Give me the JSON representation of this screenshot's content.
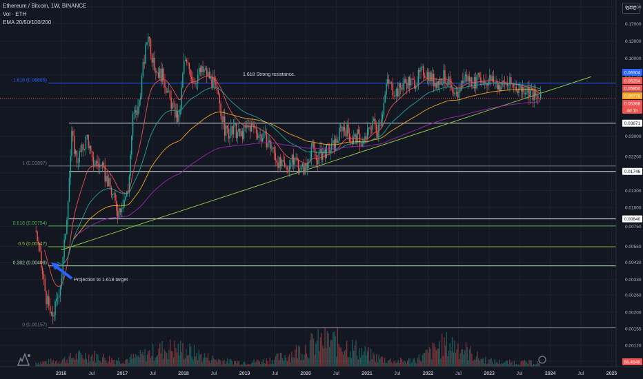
{
  "header": {
    "symbol_line": "Ethereum / Bitcoin, 1W, BINANCE",
    "volume_line": "Vol · ETH",
    "ema_line": "EMA 20/50/100/200",
    "currency": "BTC"
  },
  "colors": {
    "background": "#131722",
    "grid": "#1e222d",
    "text": "#b2b5be",
    "up": "#26a69a",
    "down": "#ef5350",
    "fib_1618": "#2962ff",
    "fib_618": "#4caf50",
    "fib_other": "#787b86",
    "trendline": "#8bc34a",
    "ema20": "#ef5350",
    "ema50": "#26a69a",
    "ema100": "#f5a623",
    "ema200": "#9c27b0"
  },
  "chart_data": {
    "type": "candlestick",
    "scale": "log",
    "x_ticks": [
      "2016",
      "Jul",
      "2017",
      "Jul",
      "2018",
      "Jul",
      "2019",
      "Jul",
      "2020",
      "Jul",
      "2021",
      "Jul",
      "2022",
      "Jul",
      "2023",
      "Jul",
      "2024",
      "Jul",
      "2025"
    ],
    "y_ticks": [
      "0.22000",
      "0.17000",
      "0.13000",
      "0.10000",
      "0.07700",
      "0.04700",
      "0.03000",
      "0.02200",
      "0.01700",
      "0.01300",
      "0.01000",
      "0.00750",
      "0.00550",
      "0.00430",
      "0.00330",
      "0.00260",
      "0.00200",
      "0.00155",
      "0.00120",
      "0.00094"
    ],
    "ylim": [
      0.00094,
      0.22
    ],
    "price_path": [
      {
        "date": "2015-08",
        "price": 0.007
      },
      {
        "date": "2015-09",
        "price": 0.004
      },
      {
        "date": "2015-10",
        "price": 0.0025
      },
      {
        "date": "2015-11",
        "price": 0.0018
      },
      {
        "date": "2015-12",
        "price": 0.0023
      },
      {
        "date": "2016-01",
        "price": 0.0035
      },
      {
        "date": "2016-02",
        "price": 0.009
      },
      {
        "date": "2016-03",
        "price": 0.03
      },
      {
        "date": "2016-04",
        "price": 0.021
      },
      {
        "date": "2016-05",
        "price": 0.024
      },
      {
        "date": "2016-06",
        "price": 0.03
      },
      {
        "date": "2016-07",
        "price": 0.02
      },
      {
        "date": "2016-08",
        "price": 0.02
      },
      {
        "date": "2016-09",
        "price": 0.018
      },
      {
        "date": "2016-10",
        "price": 0.015
      },
      {
        "date": "2016-11",
        "price": 0.012
      },
      {
        "date": "2016-12",
        "price": 0.0095
      },
      {
        "date": "2017-01",
        "price": 0.011
      },
      {
        "date": "2017-02",
        "price": 0.013
      },
      {
        "date": "2017-03",
        "price": 0.04
      },
      {
        "date": "2017-04",
        "price": 0.045
      },
      {
        "date": "2017-05",
        "price": 0.085
      },
      {
        "date": "2017-06",
        "price": 0.15
      },
      {
        "date": "2017-07",
        "price": 0.09
      },
      {
        "date": "2017-08",
        "price": 0.08
      },
      {
        "date": "2017-09",
        "price": 0.075
      },
      {
        "date": "2017-10",
        "price": 0.055
      },
      {
        "date": "2017-11",
        "price": 0.045
      },
      {
        "date": "2017-12",
        "price": 0.038
      },
      {
        "date": "2018-01",
        "price": 0.095
      },
      {
        "date": "2018-02",
        "price": 0.085
      },
      {
        "date": "2018-03",
        "price": 0.07
      },
      {
        "date": "2018-04",
        "price": 0.08
      },
      {
        "date": "2018-05",
        "price": 0.082
      },
      {
        "date": "2018-06",
        "price": 0.075
      },
      {
        "date": "2018-07",
        "price": 0.065
      },
      {
        "date": "2018-08",
        "price": 0.05
      },
      {
        "date": "2018-09",
        "price": 0.033
      },
      {
        "date": "2018-10",
        "price": 0.031
      },
      {
        "date": "2018-11",
        "price": 0.033
      },
      {
        "date": "2018-12",
        "price": 0.03
      },
      {
        "date": "2019-01",
        "price": 0.033
      },
      {
        "date": "2019-02",
        "price": 0.035
      },
      {
        "date": "2019-03",
        "price": 0.034
      },
      {
        "date": "2019-04",
        "price": 0.03
      },
      {
        "date": "2019-05",
        "price": 0.029
      },
      {
        "date": "2019-06",
        "price": 0.026
      },
      {
        "date": "2019-07",
        "price": 0.022
      },
      {
        "date": "2019-08",
        "price": 0.019
      },
      {
        "date": "2019-09",
        "price": 0.018
      },
      {
        "date": "2019-10",
        "price": 0.02
      },
      {
        "date": "2019-11",
        "price": 0.021
      },
      {
        "date": "2019-12",
        "price": 0.018
      },
      {
        "date": "2020-01",
        "price": 0.0185
      },
      {
        "date": "2020-02",
        "price": 0.026
      },
      {
        "date": "2020-03",
        "price": 0.021
      },
      {
        "date": "2020-04",
        "price": 0.023
      },
      {
        "date": "2020-05",
        "price": 0.024
      },
      {
        "date": "2020-06",
        "price": 0.025
      },
      {
        "date": "2020-07",
        "price": 0.028
      },
      {
        "date": "2020-08",
        "price": 0.035
      },
      {
        "date": "2020-09",
        "price": 0.033
      },
      {
        "date": "2020-10",
        "price": 0.028
      },
      {
        "date": "2020-11",
        "price": 0.03
      },
      {
        "date": "2020-12",
        "price": 0.026
      },
      {
        "date": "2021-01",
        "price": 0.031
      },
      {
        "date": "2021-02",
        "price": 0.038
      },
      {
        "date": "2021-03",
        "price": 0.033
      },
      {
        "date": "2021-04",
        "price": 0.045
      },
      {
        "date": "2021-05",
        "price": 0.07
      },
      {
        "date": "2021-06",
        "price": 0.062
      },
      {
        "date": "2021-07",
        "price": 0.06
      },
      {
        "date": "2021-08",
        "price": 0.068
      },
      {
        "date": "2021-09",
        "price": 0.07
      },
      {
        "date": "2021-10",
        "price": 0.068
      },
      {
        "date": "2021-11",
        "price": 0.075
      },
      {
        "date": "2021-12",
        "price": 0.082
      },
      {
        "date": "2022-01",
        "price": 0.078
      },
      {
        "date": "2022-02",
        "price": 0.07
      },
      {
        "date": "2022-03",
        "price": 0.07
      },
      {
        "date": "2022-04",
        "price": 0.075
      },
      {
        "date": "2022-05",
        "price": 0.068
      },
      {
        "date": "2022-06",
        "price": 0.052
      },
      {
        "date": "2022-07",
        "price": 0.06
      },
      {
        "date": "2022-08",
        "price": 0.076
      },
      {
        "date": "2022-09",
        "price": 0.072
      },
      {
        "date": "2022-10",
        "price": 0.069
      },
      {
        "date": "2022-11",
        "price": 0.072
      },
      {
        "date": "2022-12",
        "price": 0.071
      },
      {
        "date": "2023-01",
        "price": 0.072
      },
      {
        "date": "2023-02",
        "price": 0.069
      },
      {
        "date": "2023-03",
        "price": 0.065
      },
      {
        "date": "2023-04",
        "price": 0.068
      },
      {
        "date": "2023-05",
        "price": 0.067
      },
      {
        "date": "2023-06",
        "price": 0.064
      },
      {
        "date": "2023-07",
        "price": 0.063
      },
      {
        "date": "2023-08",
        "price": 0.063
      },
      {
        "date": "2023-09",
        "price": 0.06
      },
      {
        "date": "2023-10",
        "price": 0.054
      },
      {
        "date": "2023-11",
        "price": 0.0537
      }
    ],
    "horizontal_levels": [
      {
        "price": 0.03671,
        "label": "0.03671",
        "style": "white"
      },
      {
        "price": 0.01746,
        "label": "0.01746",
        "style": "white"
      },
      {
        "price": 0.0084,
        "label": "0.00840",
        "style": "white"
      }
    ],
    "fib_levels": [
      {
        "label": "1.618 (0.06805)",
        "price": 0.06805,
        "color": "#2962ff"
      },
      {
        "label": "1 (0.01897)",
        "price": 0.01897,
        "color": "#787b86"
      },
      {
        "label": "0.618 (0.00754)",
        "price": 0.00754,
        "color": "#4caf50"
      },
      {
        "label": "0.5 (0.00547)",
        "price": 0.00547,
        "color": "#8bc34a"
      },
      {
        "label": "0.382 (0.00408)",
        "price": 0.00408,
        "color": "#a5d6a7"
      },
      {
        "label": "0 (0.00157)",
        "price": 0.00157,
        "color": "#787b86"
      }
    ],
    "trendline": [
      {
        "date": "2016-01",
        "price": 0.0052
      },
      {
        "date": "2024-09",
        "price": 0.075
      }
    ],
    "price_labels": [
      {
        "price": 0.06304,
        "label": "0.06304",
        "color": "#2962ff"
      },
      {
        "price": 0.06254,
        "label": "0.06254",
        "color": "#ef5350"
      },
      {
        "price": 0.0585,
        "label": "0.05850",
        "color": "#ef5350"
      },
      {
        "price": 0.05778,
        "label": "0.05778",
        "color": "#f5a623"
      },
      {
        "price": 0.05368,
        "label": "0.05368",
        "color": "#ef5350"
      },
      {
        "price": 0.052,
        "label": "4d 1h",
        "color": "#ef5350"
      },
      {
        "price": 0.00094,
        "label": "56.454K",
        "color": "#ef5350",
        "volume": true
      }
    ],
    "annotations": [
      {
        "text": "1.618 Strong resistance.",
        "date": "2019-01",
        "price": 0.068
      },
      {
        "text": "Projection to 1.618 target",
        "date": "2016-02",
        "price": 0.0034
      }
    ],
    "volume_series_name": "Vol · ETH",
    "ema_series": [
      "EMA 20",
      "EMA 50",
      "EMA 100",
      "EMA 200"
    ]
  }
}
